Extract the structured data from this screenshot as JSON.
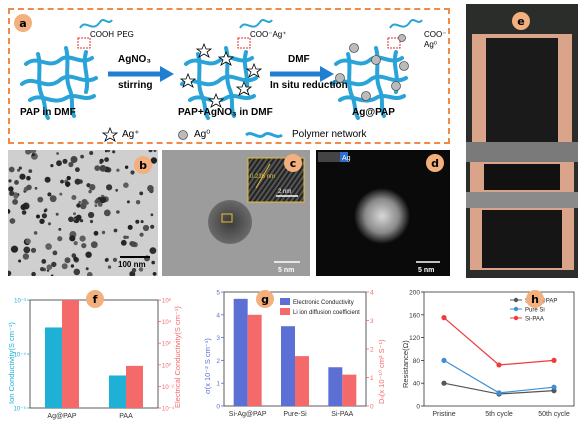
{
  "panel_a": {
    "label": "a",
    "step1": {
      "chem1": "COOH",
      "chem2": "PEG",
      "caption": "PAP in DMF"
    },
    "arrow1": {
      "top": "AgNO₃",
      "bottom": "stirring"
    },
    "step2": {
      "chem": "COO⁻Ag⁺",
      "caption": "PAP+AgNO₃ in DMF"
    },
    "arrow2": {
      "top": "DMF",
      "bottom": "In situ reduction"
    },
    "step3": {
      "chem": "COO⁻",
      "chem2": "Ag⁰",
      "caption": "Ag@PAP"
    },
    "legend": {
      "ag_ion": "Ag⁺",
      "ag0": "Ag⁰",
      "network": "Polymer network"
    },
    "colors": {
      "border": "#ef8a4a",
      "polymer": "#2aa4d8",
      "arrow": "#1f7fd0"
    }
  },
  "panel_b": {
    "label": "b",
    "scalebar": "100 nm"
  },
  "panel_c": {
    "label": "c",
    "inset_scalebar": "2 nm",
    "scalebar": "5 nm",
    "lattice_label": "0.236 nm"
  },
  "panel_d": {
    "label": "d",
    "scalebar": "5 nm",
    "badge": "Ag"
  },
  "panel_e": {
    "label": "e"
  },
  "panel_f": {
    "label": "f",
    "chart_data": {
      "type": "bar",
      "categories": [
        "Ag@PAP",
        "PAA"
      ],
      "ylabel_left": "Ion Conductivity(S cm⁻¹)",
      "ylabel_right": "Electrical Conductivity(S cm⁻¹)",
      "left_ticks": [
        "10⁻³",
        "10⁻⁴",
        "10⁻⁵"
      ],
      "right_ticks": [
        "10⁶",
        "10⁴",
        "10²",
        "10⁰",
        "10⁻²",
        "10⁻⁴"
      ],
      "series": [
        {
          "axis": "left",
          "color": "#1fb0d6",
          "values": [
            0.00031,
            4e-05
          ]
        },
        {
          "axis": "right",
          "color": "#f46a6a",
          "values": [
            1000000,
            0.8
          ]
        }
      ]
    }
  },
  "panel_g": {
    "label": "g",
    "chart_data": {
      "type": "bar",
      "categories": [
        "Si-Ag@PAP",
        "Pure-Si",
        "Si-PAA"
      ],
      "ylabel_left": "σ(x 10⁻² S cm⁻¹)",
      "ylabel_right": "Dₗᵢ(x 10⁻¹⁰ cm² S⁻¹)",
      "left_ticks": [
        "0",
        "1",
        "2",
        "3",
        "4",
        "5"
      ],
      "right_ticks": [
        "0",
        "1",
        "2",
        "3",
        "4"
      ],
      "ylim_left": [
        0,
        5
      ],
      "ylim_right": [
        0,
        4
      ],
      "series": [
        {
          "name": "Electronic Conductivity",
          "axis": "left",
          "color": "#5b6fd4",
          "values": [
            4.7,
            3.5,
            1.7
          ]
        },
        {
          "name": "Li ion diffusion coefficient",
          "axis": "right",
          "color": "#f46a6a",
          "values": [
            3.2,
            1.75,
            1.1
          ]
        }
      ]
    }
  },
  "panel_h": {
    "label": "h",
    "chart_data": {
      "type": "line",
      "categories": [
        "Pristine",
        "5th cycle",
        "50th cycle"
      ],
      "ylabel": "Resistance(Ω)",
      "y_ticks": [
        "0",
        "40",
        "80",
        "120",
        "160",
        "200"
      ],
      "ylim": [
        0,
        200
      ],
      "series": [
        {
          "name": "Si-Ag@PAP",
          "color": "#555555",
          "values": [
            40,
            21,
            27
          ]
        },
        {
          "name": "Pure Si",
          "color": "#3a8fd6",
          "values": [
            80,
            23,
            33
          ]
        },
        {
          "name": "Si-PAA",
          "color": "#ef3b3b",
          "values": [
            155,
            72,
            80
          ]
        }
      ]
    }
  }
}
